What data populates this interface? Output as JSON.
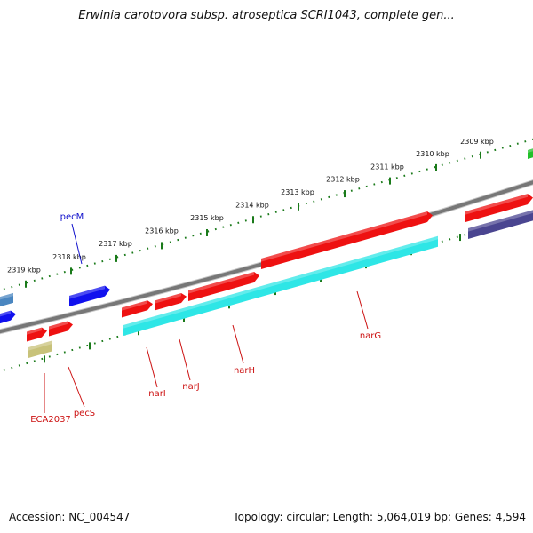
{
  "title": "Erwinia carotovora subsp. atroseptica SCRI1043, complete gen...",
  "footer": {
    "accession": "Accession: NC_004547",
    "summary": "Topology: circular; Length: 5,064,019 bp; Genes: 4,594"
  },
  "colors": {
    "backbone": "#777777",
    "ticks": "#1a7a1a",
    "forward_cds": "#ee1111",
    "reverse_cds": "#2ee6e6",
    "blue_gene": "#1111ee",
    "steel_gene": "#4a86c0",
    "slate_gene": "#4a4590",
    "olive_gene": "#c8c27a",
    "green_gene": "#22c02a",
    "red_label": "#cc1111",
    "blue_label": "#1111cc"
  },
  "scale_labels": [
    "2309 kbp",
    "2310 kbp",
    "2311 kbp",
    "2312 kbp",
    "2313 kbp",
    "2314 kbp",
    "2315 kbp",
    "2316 kbp",
    "2317 kbp",
    "2318 kbp",
    "2319 kbp"
  ],
  "gene_labels": [
    {
      "name": "pecM",
      "color": "blue"
    },
    {
      "name": "ECA2037",
      "color": "red"
    },
    {
      "name": "pecS",
      "color": "red"
    },
    {
      "name": "narI",
      "color": "red"
    },
    {
      "name": "narJ",
      "color": "red"
    },
    {
      "name": "narH",
      "color": "red"
    },
    {
      "name": "narG",
      "color": "red"
    }
  ]
}
